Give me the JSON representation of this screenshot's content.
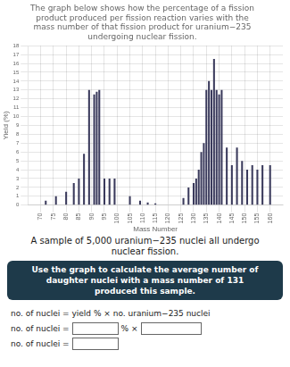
{
  "chart_data": {
    "type": "bar",
    "title": [
      "The graph below shows how the percentage of a fission",
      "product produced per fission reaction varies with the",
      "mass number of that fission product for uranium−235",
      "undergoing nuclear fission."
    ],
    "xlabel": "Mass Number",
    "ylabel": "Yield (%)",
    "x": [
      72,
      76,
      80,
      83,
      85,
      87,
      89,
      91,
      92,
      93,
      95,
      97,
      99,
      105,
      109,
      112,
      115,
      126,
      128,
      130,
      131,
      132,
      133,
      134,
      135,
      136,
      137,
      138,
      139,
      140,
      141,
      143,
      145,
      147,
      149,
      151,
      153,
      155,
      157,
      160
    ],
    "values": [
      0.5,
      1.0,
      1.5,
      2.5,
      3.0,
      5.8,
      13.0,
      12.5,
      12.8,
      13.0,
      3.0,
      3.0,
      3.0,
      1.0,
      0.5,
      0.3,
      0.2,
      0.8,
      2.0,
      2.5,
      3.0,
      4.0,
      6.0,
      7.0,
      13.0,
      14.0,
      13.0,
      16.5,
      13.0,
      12.5,
      13.0,
      6.5,
      4.5,
      6.5,
      5.0,
      4.0,
      4.5,
      4.0,
      4.5,
      4.5
    ],
    "color": "#3a3a5c",
    "xlim": [
      65,
      165
    ],
    "xticks": [
      70,
      75,
      80,
      85,
      90,
      95,
      100,
      105,
      110,
      115,
      120,
      125,
      130,
      135,
      140,
      145,
      150,
      155,
      160
    ],
    "ylim": [
      0,
      18
    ],
    "yticks": [
      0,
      1,
      2,
      3,
      4,
      5,
      6,
      7,
      8,
      9,
      10,
      11,
      12,
      13,
      14,
      15,
      16,
      17,
      18
    ],
    "grid": true,
    "annotations": [
      "A sample of 5,000 uranium−235 nuclei all undergo",
      "nuclear fission.",
      "Use the graph to calculate the average number of\ndaughter nuclei with a mass number of 131\nproduced this sample.",
      "no. of nuclei = yield % × no. uranium−235 nuclei",
      "no. of nuclei =",
      "% ×",
      "no. of nuclei ="
    ]
  }
}
